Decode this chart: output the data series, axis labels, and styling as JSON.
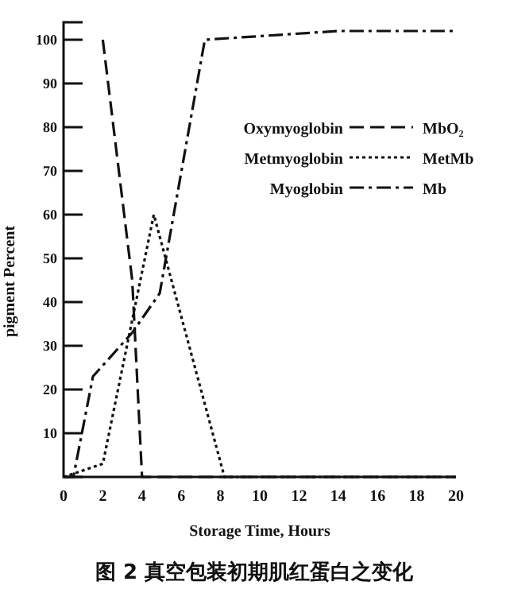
{
  "chart_data": {
    "type": "line",
    "title": "图 2  真空包装初期肌红蛋白之变化",
    "xlabel": "Storage Time, Hours",
    "ylabel": "pigment Percent",
    "xlim": [
      0,
      20
    ],
    "xticks": [
      0,
      2,
      4,
      6,
      8,
      10,
      12,
      14,
      16,
      18,
      20
    ],
    "ylim": [
      0,
      104
    ],
    "yticks": [
      10,
      20,
      30,
      40,
      50,
      60,
      70,
      80,
      90,
      100
    ],
    "grid": false,
    "legend": "top right",
    "marker": "none",
    "annotations": [
      "MbO₂",
      "MetMb",
      "Mb"
    ],
    "series": [
      {
        "name": "Oxymyoglobin",
        "color": "#111111",
        "line_style": "dashed",
        "x": [
          2,
          3.5,
          4,
          20
        ],
        "values": [
          100,
          45,
          0,
          0
        ]
      },
      {
        "name": "Metmyoglobin",
        "color": "#111111",
        "line_style": "dotted",
        "x": [
          0,
          2,
          4.6,
          8.2,
          20
        ],
        "values": [
          0,
          3,
          60,
          0,
          0
        ]
      },
      {
        "name": "Myoglobin",
        "color": "#111111",
        "line_style": "dashdot",
        "x": [
          0,
          0.5,
          1.5,
          3.5,
          4.9,
          7.2,
          14,
          20
        ],
        "values": [
          0,
          0,
          23,
          33,
          42,
          100,
          102,
          102
        ]
      }
    ]
  }
}
